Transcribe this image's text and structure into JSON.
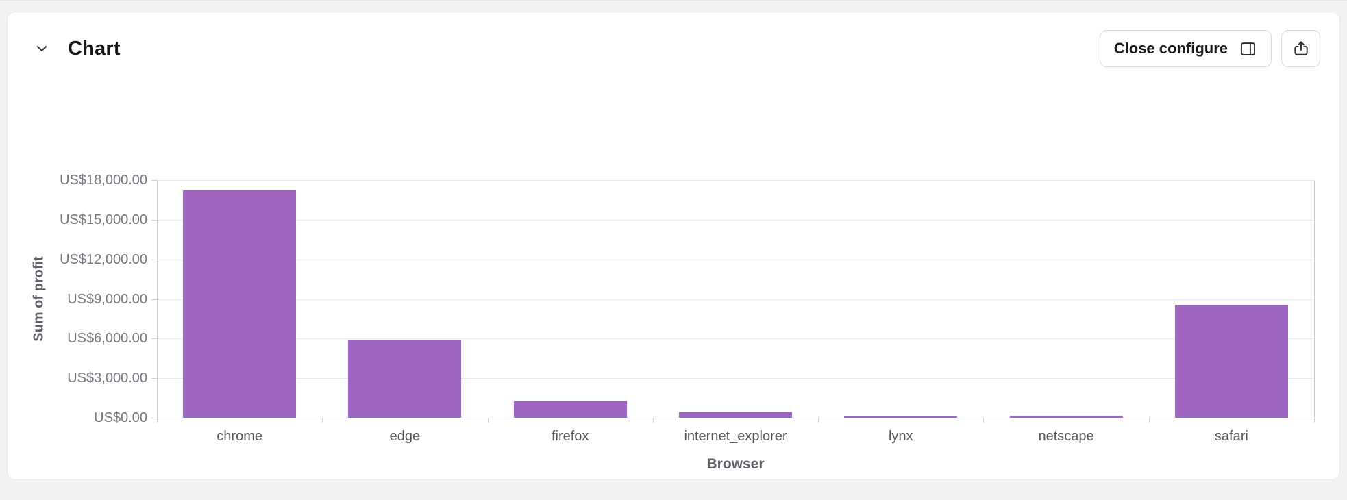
{
  "header": {
    "title": "Chart",
    "collapse_icon": "chevron-down-icon",
    "buttons": {
      "close_configure": {
        "label": "Close configure",
        "icon": "panel-collapse-icon"
      },
      "share": {
        "icon": "share-icon"
      }
    }
  },
  "chart_data": {
    "type": "bar",
    "title": "",
    "xlabel": "Browser",
    "ylabel": "Sum of profit",
    "categories": [
      "chrome",
      "edge",
      "firefox",
      "internet_explorer",
      "lynx",
      "netscape",
      "safari"
    ],
    "values": [
      17200,
      5900,
      1250,
      390,
      80,
      180,
      8540
    ],
    "ylim": [
      0,
      18000
    ],
    "y_tick_step": 3000,
    "y_tick_labels": [
      "US$0.00",
      "US$3,000.00",
      "US$6,000.00",
      "US$9,000.00",
      "US$12,000.00",
      "US$15,000.00",
      "US$18,000.00"
    ],
    "bar_color": "#9d64c0",
    "grid": true,
    "legend": "none"
  },
  "colors": {
    "page_background": "#f2f3f5",
    "panel_background": "#ffffff"
  }
}
